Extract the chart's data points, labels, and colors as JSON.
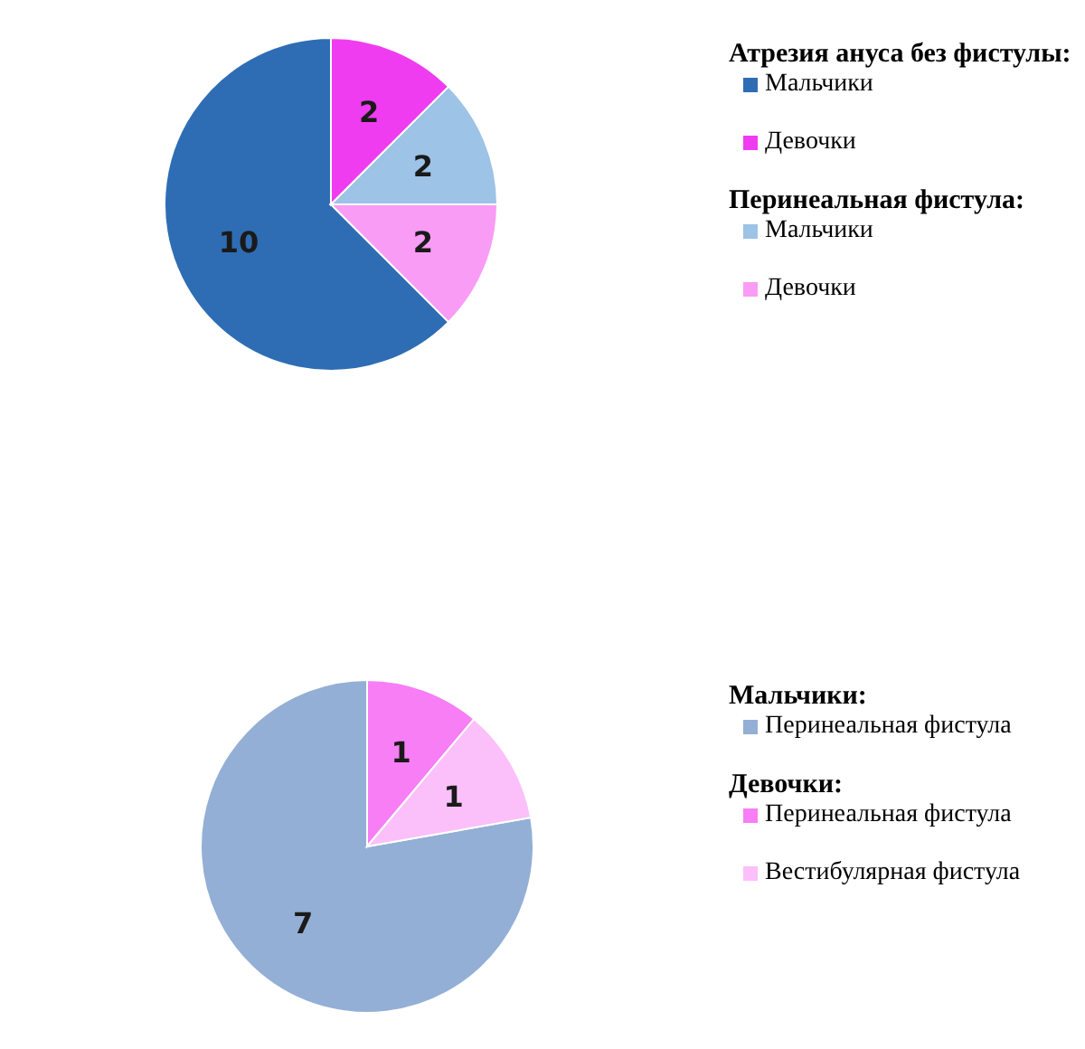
{
  "chart_data": [
    {
      "type": "pie",
      "categories": [
        "Мальчики",
        "Девочки",
        "Мальчики",
        "Девочки"
      ],
      "values": [
        10,
        2,
        2,
        2
      ],
      "colors": [
        "#2e6db4",
        "#f03cf0",
        "#9dc3e6",
        "#f99cf5"
      ],
      "data_labels": true,
      "legend": "right",
      "annotations": [
        "Атрезия ануса без фистулы:",
        "Перинеальная фистула:"
      ]
    },
    {
      "type": "pie",
      "categories": [
        "Перинеальная фистула",
        "Перинеальная фистула",
        "Вестибулярная фистула"
      ],
      "values": [
        7,
        1,
        1
      ],
      "colors": [
        "#94afd6",
        "#f77ef5",
        "#fbc0f9"
      ],
      "data_labels": true,
      "legend": "right",
      "annotations": [
        "Мальчики:",
        "Девочки:"
      ]
    }
  ]
}
